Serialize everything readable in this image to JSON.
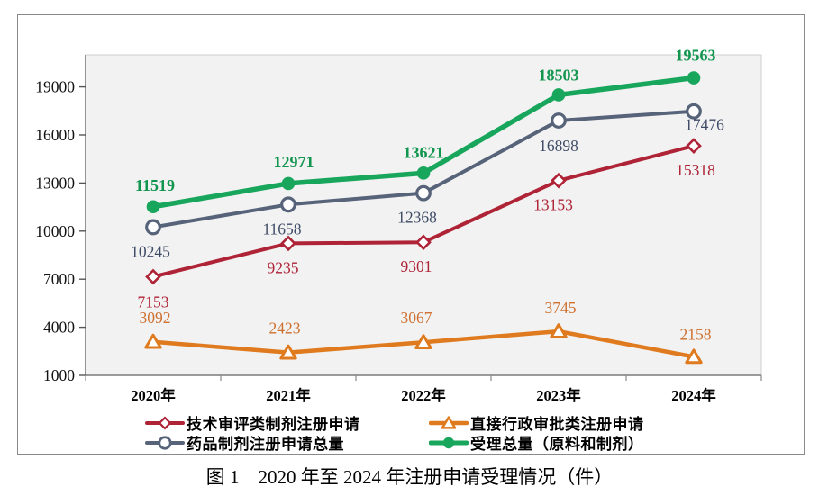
{
  "figure": {
    "caption": "图 1　2020 年至 2024 年注册申请受理情况（件）"
  },
  "chart_data": {
    "type": "line",
    "title": "",
    "xlabel": "",
    "ylabel": "",
    "grid": false,
    "legend_position": "bottom",
    "categories": [
      "2020年",
      "2021年",
      "2022年",
      "2023年",
      "2024年"
    ],
    "y_axis": {
      "min": 1000,
      "max": 21000,
      "tick_interval": 3000,
      "ticks": [
        1000,
        4000,
        7000,
        10000,
        13000,
        16000,
        19000
      ]
    },
    "series": [
      {
        "name": "技术审评类制剂注册申请",
        "values": [
          7153,
          9235,
          9301,
          13153,
          15318
        ],
        "color": "#AF2337",
        "label_color": "#AF2337",
        "marker": "diamond-open",
        "line_width": 4,
        "label_bold": false,
        "label_offsets": [
          [
            0,
            28
          ],
          [
            -6,
            27
          ],
          [
            -8,
            27
          ],
          [
            -6,
            27
          ],
          [
            2,
            27
          ]
        ]
      },
      {
        "name": "直接行政审批类注册申请",
        "values": [
          3092,
          2423,
          3067,
          3745,
          2158
        ],
        "color": "#DF7A1E",
        "label_color": "#CE7030",
        "marker": "triangle-open",
        "line_width": 4.5,
        "label_bold": false,
        "label_offsets": [
          [
            2,
            -27
          ],
          [
            -4,
            -27
          ],
          [
            -8,
            -27
          ],
          [
            2,
            -26
          ],
          [
            2,
            -25
          ]
        ]
      },
      {
        "name": "药品制剂注册申请总量",
        "values": [
          10245,
          11658,
          12368,
          16898,
          17476
        ],
        "color": "#566379",
        "label_color": "#3F4C66",
        "marker": "circle-open",
        "line_width": 4,
        "label_bold": false,
        "label_offsets": [
          [
            -3,
            27
          ],
          [
            -7,
            27
          ],
          [
            -7,
            27
          ],
          [
            0,
            28
          ],
          [
            12,
            15
          ]
        ]
      },
      {
        "name": "受理总量（原料和制剂）",
        "values": [
          11519,
          12971,
          13621,
          18503,
          19563
        ],
        "color": "#17A65B",
        "label_color": "#11954F",
        "marker": "circle-filled",
        "line_width": 5.5,
        "label_bold": true,
        "label_offsets": [
          [
            2,
            -24
          ],
          [
            6,
            -24
          ],
          [
            0,
            -23
          ],
          [
            0,
            -22
          ],
          [
            2,
            -25
          ]
        ]
      }
    ]
  }
}
